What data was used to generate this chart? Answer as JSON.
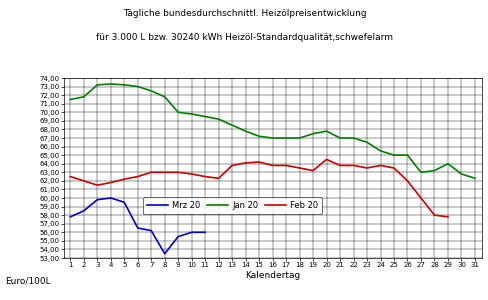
{
  "title_line1": "Tägliche bundesdurchschnittl. Heizölpreisentwicklung",
  "title_line2": "für 3.000 L bzw. 30240 kWh Heizöl-Standardqualität,schwefelarm",
  "xlabel": "Kalendertag",
  "ylabel": "Euro/100L",
  "ylim": [
    53.0,
    74.0
  ],
  "ytick_step": 1.0,
  "xlim": [
    1,
    31
  ],
  "background_color": "#ffffff",
  "grid_color": "#000000",
  "jan20_x": [
    1,
    2,
    3,
    4,
    5,
    6,
    7,
    8,
    9,
    10,
    11,
    12,
    13,
    14,
    15,
    16,
    17,
    18,
    19,
    20,
    21,
    22,
    23,
    24,
    25,
    26,
    27,
    28,
    29,
    30,
    31
  ],
  "jan20_y": [
    71.5,
    71.8,
    73.2,
    73.3,
    73.2,
    73.0,
    72.5,
    71.8,
    70.0,
    69.8,
    69.5,
    69.2,
    68.5,
    67.8,
    67.2,
    67.0,
    67.0,
    67.0,
    67.5,
    67.8,
    67.0,
    67.0,
    66.5,
    65.5,
    65.0,
    65.0,
    63.0,
    63.2,
    64.0,
    62.8,
    62.3
  ],
  "jan20_color": "#008000",
  "jan20_label": "Jan 20",
  "feb20_x": [
    1,
    2,
    3,
    4,
    5,
    6,
    7,
    8,
    9,
    10,
    11,
    12,
    13,
    14,
    15,
    16,
    17,
    18,
    19,
    20,
    21,
    22,
    23,
    24,
    25,
    26,
    27,
    28,
    29
  ],
  "feb20_y": [
    62.5,
    62.0,
    61.5,
    61.8,
    62.2,
    62.5,
    63.0,
    63.0,
    63.0,
    62.8,
    62.5,
    62.3,
    63.8,
    64.1,
    64.2,
    63.8,
    63.8,
    63.5,
    63.2,
    64.5,
    63.8,
    63.8,
    63.5,
    63.8,
    63.5,
    62.0,
    60.0,
    58.0,
    57.8
  ],
  "feb20_color": "#cc0000",
  "feb20_label": "Feb 20",
  "mrz20_x": [
    1,
    2,
    3,
    4,
    5,
    6,
    7,
    8,
    9,
    10,
    11
  ],
  "mrz20_y": [
    57.8,
    58.5,
    59.8,
    60.0,
    59.5,
    56.5,
    56.2,
    53.5,
    55.5,
    56.0,
    56.0
  ],
  "mrz20_color": "#0000cc",
  "mrz20_label": "Mrz 20",
  "legend_order": [
    "mrz20",
    "jan20",
    "feb20"
  ]
}
